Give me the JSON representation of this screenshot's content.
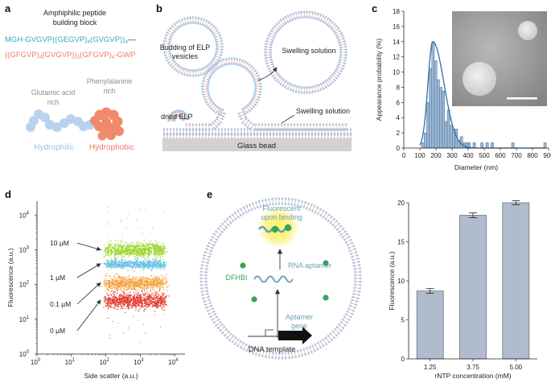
{
  "panels": {
    "a": {
      "label": "a",
      "title_line1": "Amphiphilic peptide",
      "title_line2": "building block",
      "seq_cyan_prefix": "MGH-",
      "seq_cyan_main": "GVGVP((GEGVP)",
      "seq_cyan_sub1": "4",
      "seq_cyan_mid": "(GVGVP))",
      "seq_cyan_sub2": "4",
      "seq_cyan_end": "—",
      "seq_red_main": "((GFGVP)",
      "seq_red_sub1": "4",
      "seq_red_mid": "(GVGVP))",
      "seq_red_sub2": "3",
      "seq_red_mid2": "(GFGVP)",
      "seq_red_sub3": "4",
      "seq_red_end": "-GWP",
      "glu_line1": "Glutamic acid",
      "glu_line2": "rich",
      "phe_line1": "Phenylalanine",
      "phe_line2": "rich",
      "hydrophilic": "Hydrophilic",
      "hydrophobic": "Hydrophobic",
      "colors": {
        "cyan": "#35a7c6",
        "red": "#ee7b66",
        "hydrophilic": "#b9d2ee",
        "hydrophobic": "#f08a6c",
        "grey": "#8f8f8f"
      }
    },
    "b": {
      "label": "b",
      "budding_line1": "Budding of ELP",
      "budding_line2": "vesicles",
      "swelling_top": "Swelling solution",
      "swelling_bottom": "Swelling solution",
      "dried": "dried ELP",
      "glass": "Glass bead"
    },
    "c": {
      "label": "c",
      "scale_bar": "scale-bar"
    },
    "d": {
      "label": "d",
      "conc_labels": [
        "10 µM",
        "1 µM",
        "0.1 µM",
        "0 µM"
      ],
      "cluster_colors": [
        "#9bd52a",
        "#5fc3e4",
        "#f5a03a",
        "#e33a32"
      ]
    },
    "e": {
      "label": "e",
      "fluor_line1": "Fluorescent",
      "fluor_line2": "upon binding",
      "rna": "RNA aptamer",
      "dfhbi": "DFHBI",
      "aptamer_line1": "Aptamer",
      "aptamer_line2": "gene",
      "dna": "DNA template"
    }
  },
  "chart_data": [
    {
      "id": "c",
      "type": "bar",
      "subtype": "histogram_with_fit",
      "title": "",
      "xlabel": "Diameter (nm)",
      "ylabel": "Appearance probability (%)",
      "xlim": [
        0,
        900
      ],
      "ylim": [
        0,
        18
      ],
      "xticks": [
        0,
        100,
        200,
        300,
        400,
        500,
        600,
        700,
        800,
        900
      ],
      "yticks": [
        0,
        2,
        4,
        6,
        8,
        10,
        12,
        14,
        16,
        18
      ],
      "bin_width": 16,
      "bins": [
        [
          110,
          0.7
        ],
        [
          126,
          2.0
        ],
        [
          142,
          6.0
        ],
        [
          158,
          10.5
        ],
        [
          174,
          14.0
        ],
        [
          190,
          11.5
        ],
        [
          206,
          9.0
        ],
        [
          222,
          8.0
        ],
        [
          238,
          7.5
        ],
        [
          254,
          3.5
        ],
        [
          270,
          5.0
        ],
        [
          286,
          3.0
        ],
        [
          302,
          2.5
        ],
        [
          318,
          2.5
        ],
        [
          334,
          1.0
        ],
        [
          350,
          1.5
        ],
        [
          366,
          0.7
        ],
        [
          382,
          0.7
        ],
        [
          398,
          0.7
        ],
        [
          430,
          0.7
        ],
        [
          478,
          0.7
        ],
        [
          510,
          0.7
        ],
        [
          542,
          0.7
        ],
        [
          670,
          0.7
        ],
        [
          870,
          0.7
        ]
      ],
      "fit": {
        "peak_x": 180,
        "peak_y": 14.0,
        "sigma_left": 30,
        "sigma_right": 70
      },
      "bar_color": "#9ab7d4",
      "line_color": "#2f6fa7"
    },
    {
      "id": "d",
      "type": "scatter",
      "xlabel": "Side scatter (a.u.)",
      "ylabel": "Fluorescence (a.u.)",
      "xscale": "log",
      "yscale": "log",
      "xlim_exp": [
        0,
        4.3
      ],
      "ylim_exp": [
        0,
        4.4
      ],
      "tick_base": "10",
      "tick_exponents": [
        "0",
        "1",
        "2",
        "3",
        "4"
      ],
      "x_range_exp": [
        2.0,
        3.7
      ],
      "clusters": [
        {
          "name": "10 µM",
          "center_exp": 3.0,
          "spread": 0.16,
          "color": "#9bd52a",
          "n": 900
        },
        {
          "name": "1 µM",
          "center_exp": 2.6,
          "spread": 0.1,
          "color": "#5fc3e4",
          "n": 700
        },
        {
          "name": "0.1 µM",
          "center_exp": 2.05,
          "spread": 0.16,
          "color": "#f5a03a",
          "n": 900
        },
        {
          "name": "0 µM",
          "center_exp": 1.55,
          "spread": 0.18,
          "color": "#e33a32",
          "n": 1000
        }
      ]
    },
    {
      "id": "e",
      "type": "bar",
      "xlabel": "rNTP concentration (mM)",
      "ylabel": "Fluorescence (a.u.)",
      "categories": [
        "1.25",
        "3.75",
        "5.00"
      ],
      "values": [
        8.7,
        18.4,
        20.0
      ],
      "errors": [
        0.3,
        0.3,
        0.25
      ],
      "ylim": [
        0,
        20
      ],
      "yticks": [
        0,
        5,
        10,
        15,
        20
      ],
      "bar_color": "#b0bccb"
    }
  ]
}
